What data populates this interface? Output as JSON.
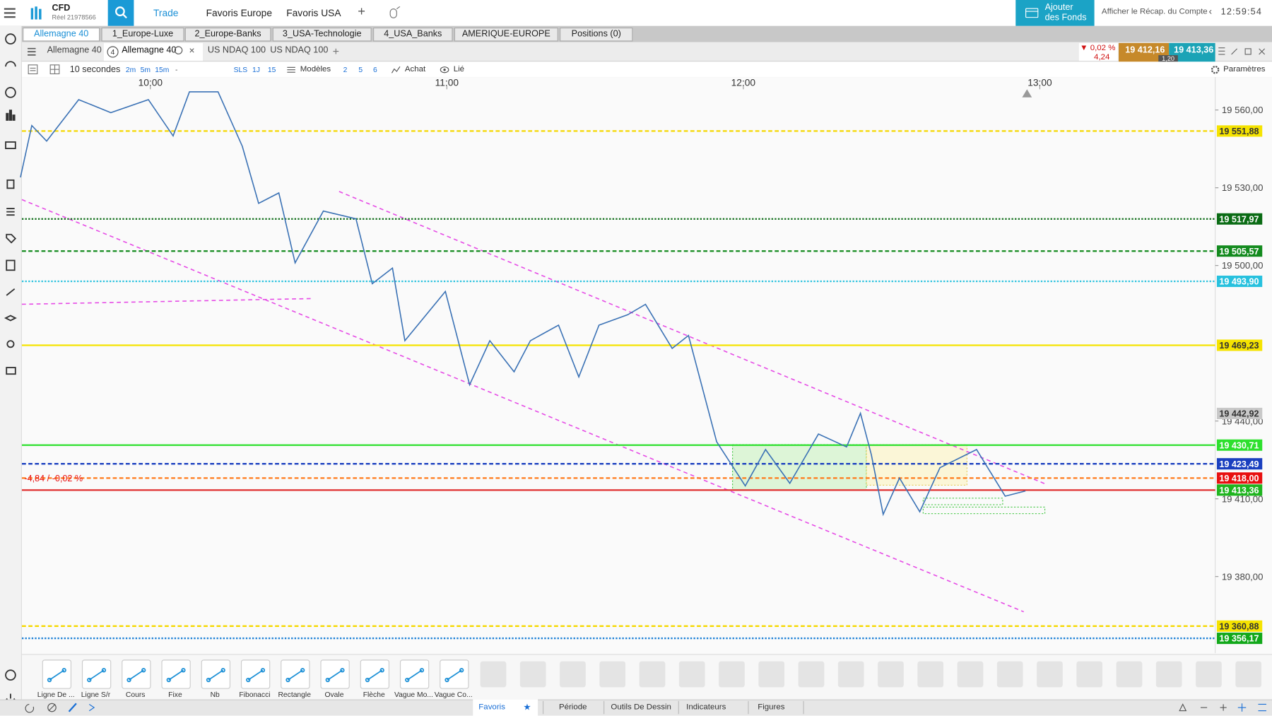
{
  "top_bar": {
    "account_type": "CFD",
    "account_id": "Réel 21978566",
    "nav": [
      "Trade",
      "Favoris Europe",
      "Favoris USA"
    ],
    "add_funds": [
      "Ajouter",
      "des Fonds"
    ],
    "summary": "Afficher le Récap. du Compte",
    "clock": "12:59:54"
  },
  "watchlists": [
    "Allemagne 40",
    "1_Europe-Luxe",
    "2_Europe-Banks",
    "3_USA-Technologie",
    "4_USA_Banks",
    "AMERIQUE-EUROPE",
    "Positions (0)"
  ],
  "chart_tabs": {
    "items": [
      "Allemagne 40",
      "Allemagne 40",
      "US NDAQ 100",
      "US NDAQ 100"
    ],
    "badge": "4"
  },
  "quote": {
    "change_pct": "▼ 0,02 %",
    "change": "4,24",
    "bid": "19 412,16",
    "ask": "19 413,36",
    "spread": "1,20"
  },
  "toolbar": {
    "interval": "10 secondes",
    "quick": [
      "2m",
      "5m",
      "15m",
      "-"
    ],
    "sls": [
      "SLS",
      "1J",
      "15"
    ],
    "templates": "Modèles",
    "counts": [
      "2",
      "5",
      "6"
    ],
    "buy": "Achat",
    "linked": "Lié",
    "settings": "Paramètres"
  },
  "chart_data": {
    "type": "line",
    "color": "#3b72b5",
    "x": [
      573.7,
      576,
      579,
      585.5,
      592,
      599.6,
      604.6,
      607.9,
      613.7,
      618.6,
      621.9,
      626,
      629.3,
      635,
      641.6,
      644.9,
      649,
      651.5,
      659.7,
      664.6,
      668.7,
      673.6,
      676.9,
      682.6,
      686.7,
      690.8,
      696.6,
      700.2,
      705.6,
      708.9,
      714.6,
      720.4,
      724.5,
      729.4,
      735.2,
      740.9,
      743.7,
      745.9,
      748.3,
      751.6,
      755.7,
      759.8,
      767.2,
      773,
      777.1
    ],
    "values": [
      19534,
      19554,
      19548,
      19564,
      19559,
      19564,
      19550,
      19567,
      19567,
      19546,
      19524,
      19528,
      19501,
      19521,
      19518,
      19493,
      19499,
      19471,
      19490,
      19454,
      19471,
      19459,
      19471,
      19477,
      19457,
      19477,
      19481,
      19485,
      19468,
      19473,
      19432,
      19415,
      19429,
      19416,
      19435,
      19430,
      19443,
      19427,
      19404,
      19418,
      19405,
      19422,
      19429,
      19411,
      19413
    ],
    "xlim": [
      574,
      815.5
    ],
    "ylim": [
      19352,
      19568
    ],
    "xticks": [
      {
        "value": 600,
        "label": "10:00"
      },
      {
        "value": 660,
        "label": "11:00"
      },
      {
        "value": 720,
        "label": "12:00"
      },
      {
        "value": 780,
        "label": "13:00"
      }
    ],
    "yticks": [
      {
        "value": 19560,
        "label": "19 560,00"
      },
      {
        "value": 19530,
        "label": "19 530,00"
      },
      {
        "value": 19500,
        "label": "19 500,00"
      },
      {
        "value": 19440,
        "label": "19 440,00"
      },
      {
        "value": 19410,
        "label": "19 410,00"
      },
      {
        "value": 19380,
        "label": "19 380,00"
      }
    ],
    "levels": [
      {
        "value": 19551.88,
        "label": "19 551,88",
        "color": "#f5d800",
        "label_color": "#f5e300",
        "style": "dashed"
      },
      {
        "value": 19517.97,
        "label": "19 517,97",
        "color": "#0a6b14",
        "label_color": "#0a6b14",
        "style": "dotted"
      },
      {
        "value": 19505.57,
        "label": "19 505,57",
        "color": "#138a1e",
        "label_color": "#138a1e",
        "style": "dashed"
      },
      {
        "value": 19493.9,
        "label": "19 493,90",
        "color": "#27c1de",
        "label_color": "#27c1de",
        "style": "dotted"
      },
      {
        "value": 19469.23,
        "label": "19 469,23",
        "color": "#f5e300",
        "label_color": "#f5e300",
        "style": "solid"
      },
      {
        "value": 19442.92,
        "label": "19 442,92",
        "color": "none",
        "label_color": "#c8c8c8",
        "style": "solid"
      },
      {
        "value": 19430.71,
        "label": "19 430,71",
        "color": "#2ee02e",
        "label_color": "#2ee02e",
        "style": "solid"
      },
      {
        "value": 19423.49,
        "label": "19 423,49",
        "color": "#1a3fbf",
        "label_color": "#1a3fbf",
        "style": "dashed"
      },
      {
        "value": 19418,
        "label": "19 418,00",
        "color": "#ff7a1a",
        "label_color": "#e81010",
        "style": "dashed"
      },
      {
        "value": 19413.36,
        "label": "19 413,36",
        "color": "#e03030",
        "label_color": "#1fb51f",
        "style": "solid"
      },
      {
        "value": 19360.88,
        "label": "19 360,88",
        "color": "#f5d800",
        "label_color": "#f5e300",
        "style": "dashed"
      },
      {
        "value": 19356.17,
        "label": "19 356,17",
        "color": "#1a7fd6",
        "label_color": "#12a81a",
        "style": "dotted"
      }
    ],
    "annotation": "-4,84 / -0,02 %"
  },
  "drawing_tools": [
    "Ligne De ...",
    "Ligne S/r",
    "Cours",
    "Fixe",
    "Nb",
    "Fibonacci",
    "Rectangle",
    "Ovale",
    "Flèche",
    "Vague Mo...",
    "Vague Co..."
  ],
  "bottom_tabs": [
    "Favoris",
    "Période",
    "Outils De Dessin",
    "Indicateurs",
    "Figures"
  ]
}
